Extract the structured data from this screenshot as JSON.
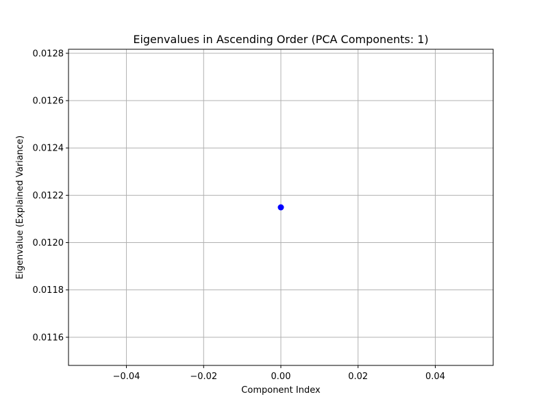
{
  "chart_data": {
    "type": "scatter",
    "title": "Eigenvalues in Ascending Order (PCA Components: 1)",
    "xlabel": "Component Index",
    "ylabel": "Eigenvalue (Explained Variance)",
    "x": [
      0
    ],
    "y": [
      0.012149
    ],
    "xlim": [
      -0.055,
      0.055
    ],
    "ylim": [
      0.011481,
      0.012817
    ],
    "xticks": [
      -0.04,
      -0.02,
      0.0,
      0.02,
      0.04
    ],
    "xtick_labels": [
      "−0.04",
      "−0.02",
      "0.00",
      "0.02",
      "0.04"
    ],
    "yticks": [
      0.0116,
      0.0118,
      0.012,
      0.0122,
      0.0124,
      0.0126,
      0.0128
    ],
    "ytick_labels": [
      "0.0116",
      "0.0118",
      "0.0120",
      "0.0122",
      "0.0124",
      "0.0126",
      "0.0128"
    ],
    "grid": true,
    "marker": "circle",
    "marker_color": "#0000ff",
    "grid_color": "#b0b0b0",
    "axis_color": "#000000"
  }
}
